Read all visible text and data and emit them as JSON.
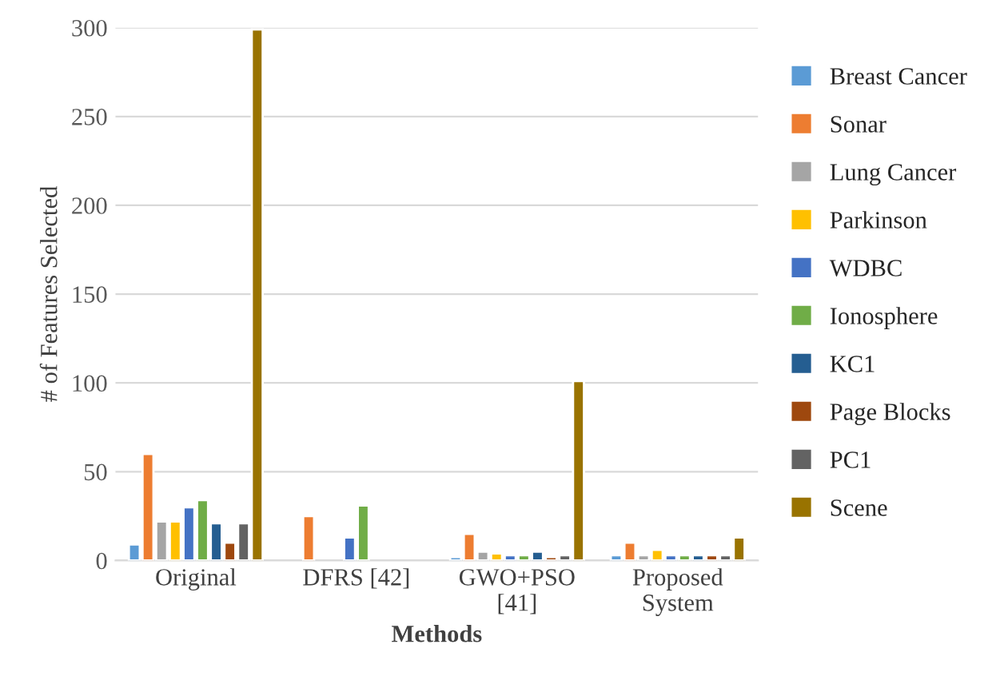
{
  "chart_data": {
    "type": "bar",
    "xlabel": "Methods",
    "ylabel": "# of Features Selected",
    "categories": [
      "Original",
      "DFRS [42]",
      "GWO+PSO\n[41]",
      "Proposed\nSystem"
    ],
    "series": [
      {
        "name": "Breast Cancer",
        "color": "#5b9bd5",
        "values": [
          9,
          null,
          2,
          3
        ]
      },
      {
        "name": "Sonar",
        "color": "#ed7d31",
        "values": [
          60,
          25,
          15,
          10
        ]
      },
      {
        "name": "Lung Cancer",
        "color": "#a5a5a5",
        "values": [
          22,
          null,
          5,
          3
        ]
      },
      {
        "name": "Parkinson",
        "color": "#ffc000",
        "values": [
          22,
          null,
          4,
          6
        ]
      },
      {
        "name": "WDBC",
        "color": "#4472c4",
        "values": [
          30,
          13,
          3,
          3
        ]
      },
      {
        "name": "Ionosphere",
        "color": "#70ad47",
        "values": [
          34,
          31,
          3,
          3
        ]
      },
      {
        "name": "KC1",
        "color": "#255e91",
        "values": [
          21,
          null,
          5,
          3
        ]
      },
      {
        "name": "Page Blocks",
        "color": "#9e480e",
        "values": [
          10,
          null,
          2,
          3
        ]
      },
      {
        "name": "PC1",
        "color": "#636363",
        "values": [
          21,
          null,
          3,
          3
        ]
      },
      {
        "name": "Scene",
        "color": "#997300",
        "values": [
          299,
          null,
          101,
          13
        ]
      }
    ],
    "ylim": [
      0,
      300
    ],
    "yticks": [
      0,
      50,
      100,
      150,
      200,
      250,
      300
    ],
    "grid": "y",
    "legend": "right"
  }
}
